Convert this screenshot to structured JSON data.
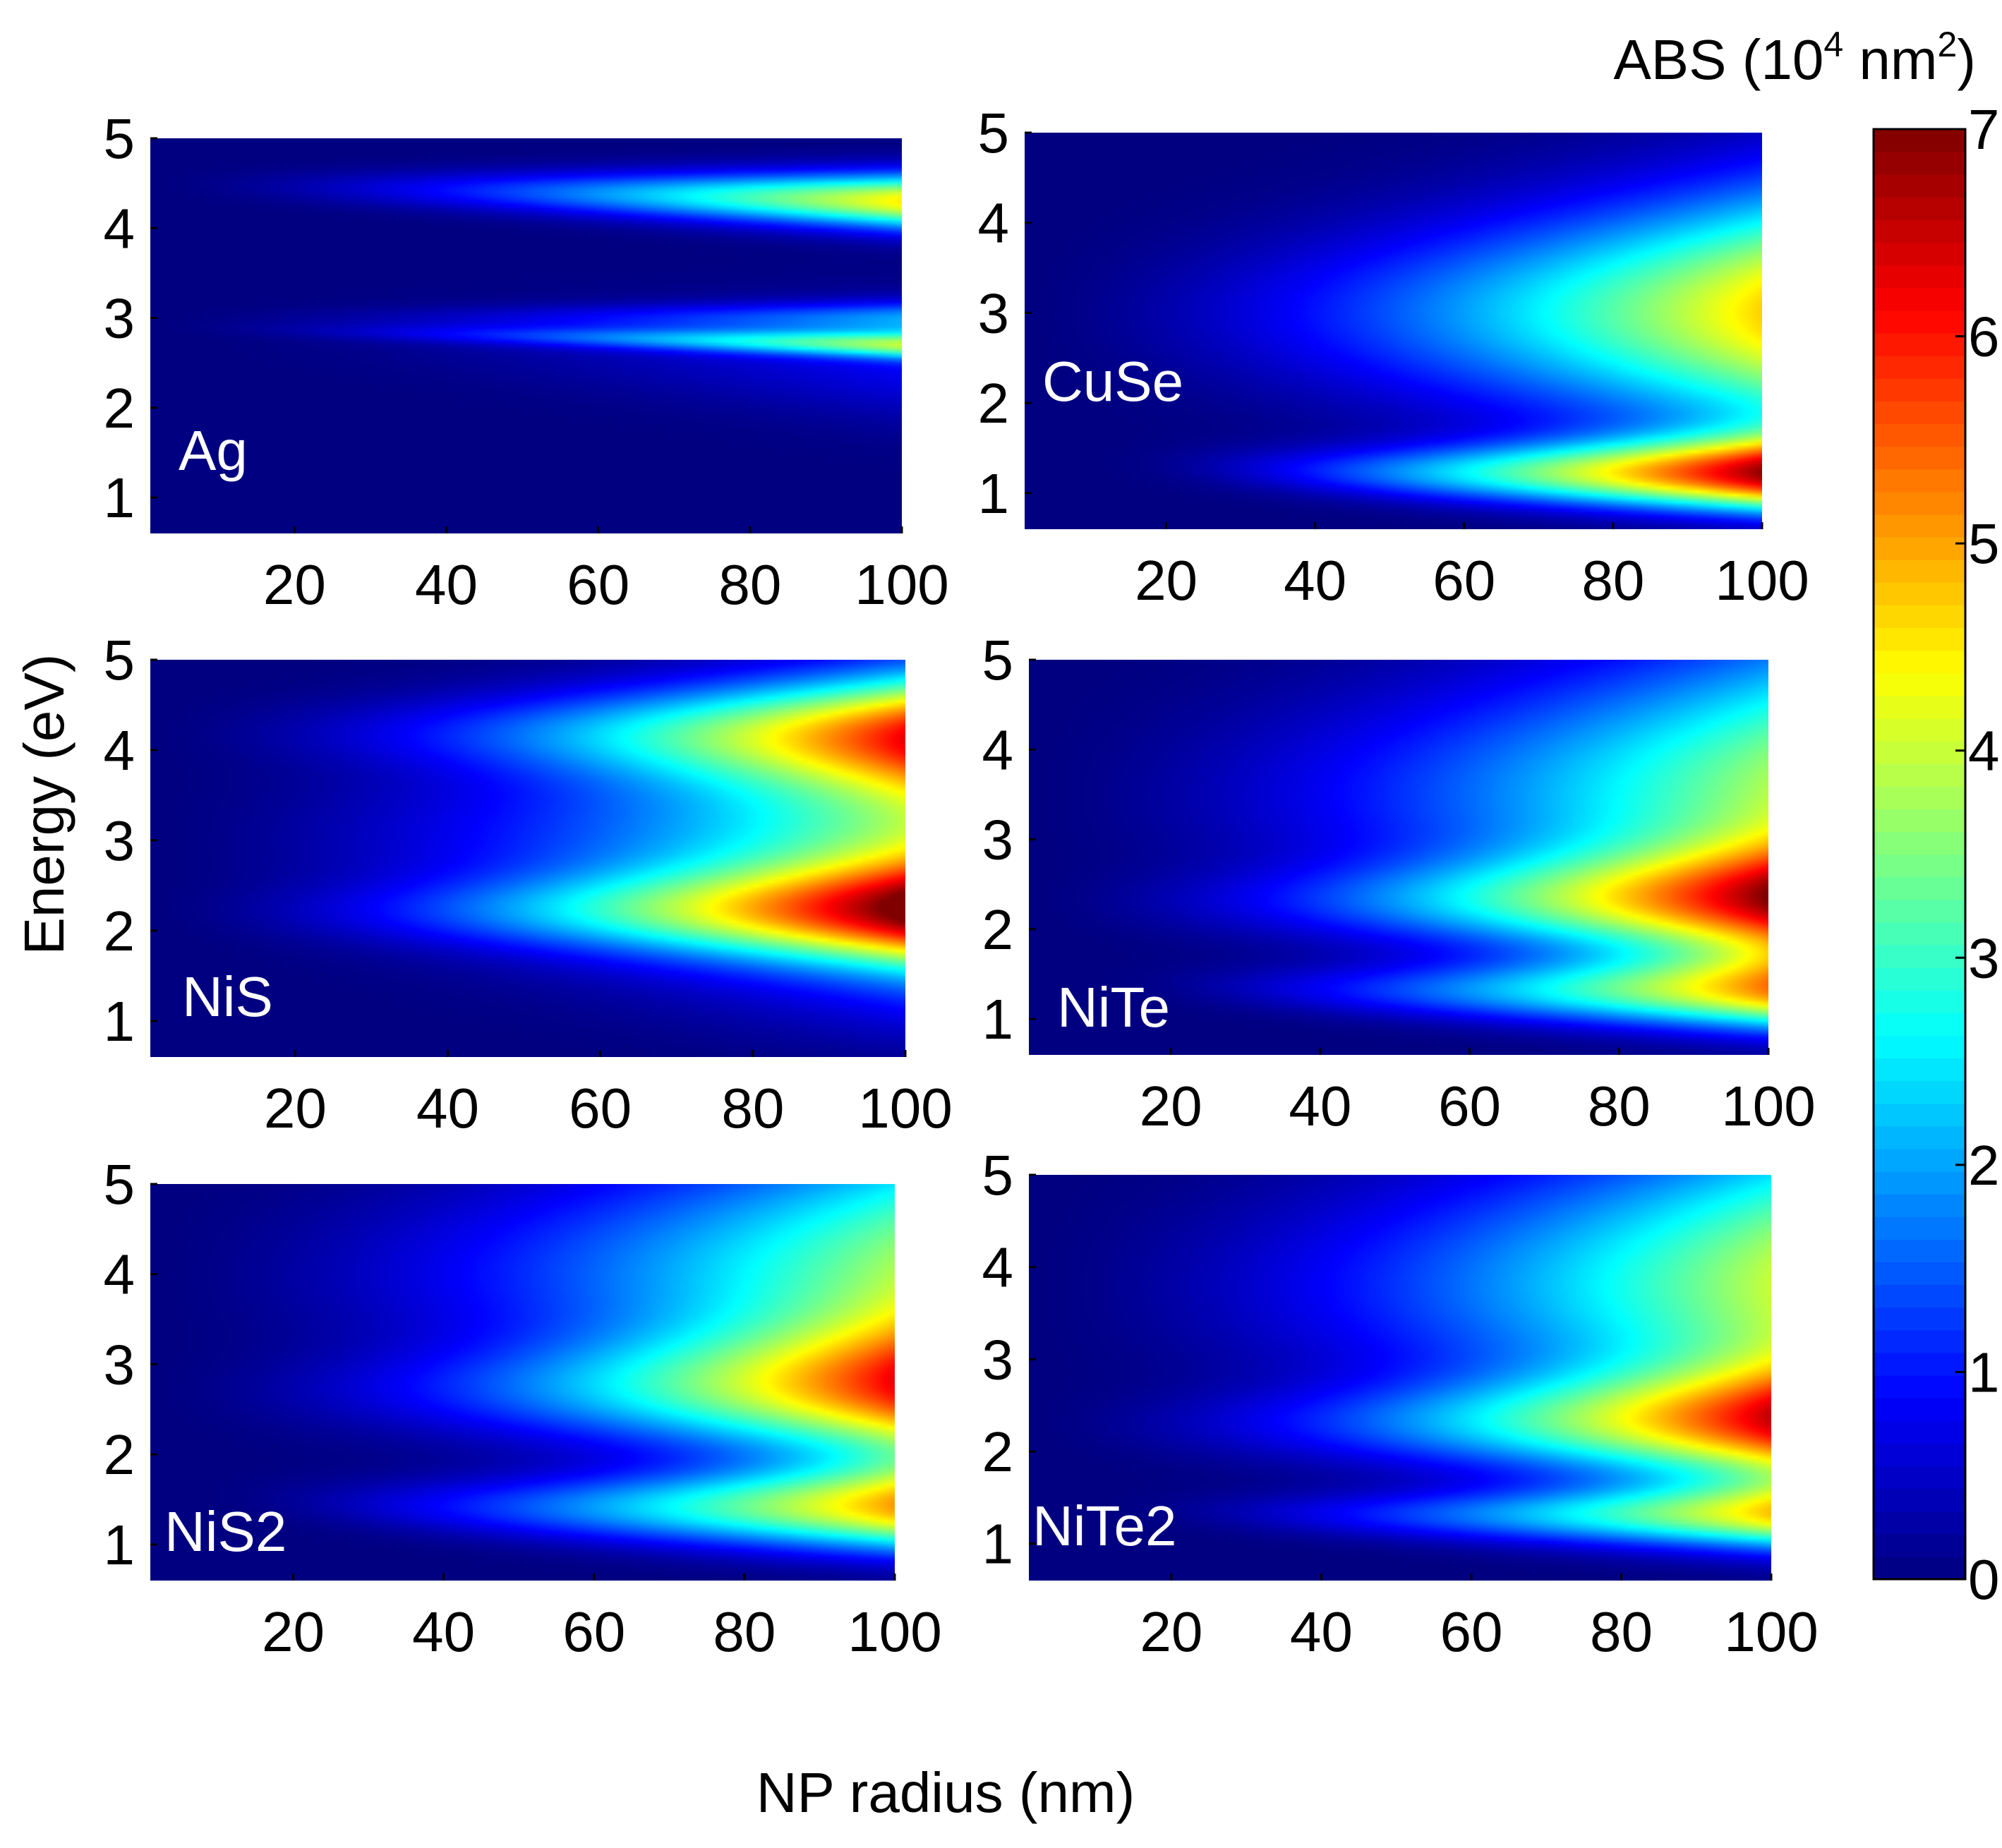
{
  "chart_data": {
    "type": "heatmap",
    "xlabel": "NP radius (nm)",
    "ylabel": "Energy (eV)",
    "xlim": [
      1,
      100
    ],
    "ylim": [
      0.6,
      5
    ],
    "xticks": [
      20,
      40,
      60,
      80,
      100
    ],
    "yticks": [
      1,
      2,
      3,
      4,
      5
    ],
    "colorbar": {
      "title_prefix": "ABS (10",
      "title_exp1": "4",
      "title_mid": " nm",
      "title_exp2": "2",
      "title_suffix": ")",
      "min": 0,
      "max": 7,
      "ticks": [
        0,
        1,
        2,
        3,
        4,
        5,
        6,
        7
      ],
      "colormap": "jet"
    },
    "panels": [
      {
        "label": "Ag",
        "description_units": "absorption 10^4 nm^2",
        "peaks": [
          {
            "energy": 4.4,
            "width": 0.25,
            "amp": 4.5,
            "slope": -0.002
          },
          {
            "energy": 2.8,
            "width": 0.12,
            "amp": 3.2,
            "slope": -0.002
          },
          {
            "energy": 3.0,
            "width": 0.15,
            "amp": 1.6,
            "slope": 0.0
          },
          {
            "energy": 2.7,
            "width": 0.5,
            "amp": 0.8,
            "slope": -0.004
          }
        ]
      },
      {
        "label": "CuSe",
        "peaks": [
          {
            "energy": 1.2,
            "width": 0.35,
            "amp": 6.3,
            "slope": 0.0
          },
          {
            "energy": 3.0,
            "width": 1.1,
            "amp": 4.7,
            "slope": 0.0
          }
        ]
      },
      {
        "label": "NiS",
        "peaks": [
          {
            "energy": 2.2,
            "width": 0.45,
            "amp": 4.6,
            "slope": 0.0
          },
          {
            "energy": 4.2,
            "width": 0.5,
            "amp": 4.2,
            "slope": 0.0
          },
          {
            "energy": 3.0,
            "width": 1.3,
            "amp": 3.6,
            "slope": 0.0
          }
        ]
      },
      {
        "label": "NiTe",
        "peaks": [
          {
            "energy": 2.3,
            "width": 0.5,
            "amp": 4.7,
            "slope": 0.0
          },
          {
            "energy": 1.3,
            "width": 0.35,
            "amp": 4.4,
            "slope": 0.0
          },
          {
            "energy": 3.5,
            "width": 1.4,
            "amp": 3.8,
            "slope": 0.0
          }
        ]
      },
      {
        "label": "NiS2",
        "peaks": [
          {
            "energy": 1.4,
            "width": 0.4,
            "amp": 4.7,
            "slope": 0.0
          },
          {
            "energy": 2.7,
            "width": 0.6,
            "amp": 4.3,
            "slope": 0.0
          },
          {
            "energy": 4.0,
            "width": 1.3,
            "amp": 3.7,
            "slope": 0.0
          }
        ]
      },
      {
        "label": "NiTe2",
        "peaks": [
          {
            "energy": 2.3,
            "width": 0.5,
            "amp": 4.7,
            "slope": 0.0
          },
          {
            "energy": 1.3,
            "width": 0.3,
            "amp": 4.1,
            "slope": 0.0
          },
          {
            "energy": 3.8,
            "width": 1.4,
            "amp": 4.0,
            "slope": 0.0
          }
        ]
      }
    ]
  }
}
